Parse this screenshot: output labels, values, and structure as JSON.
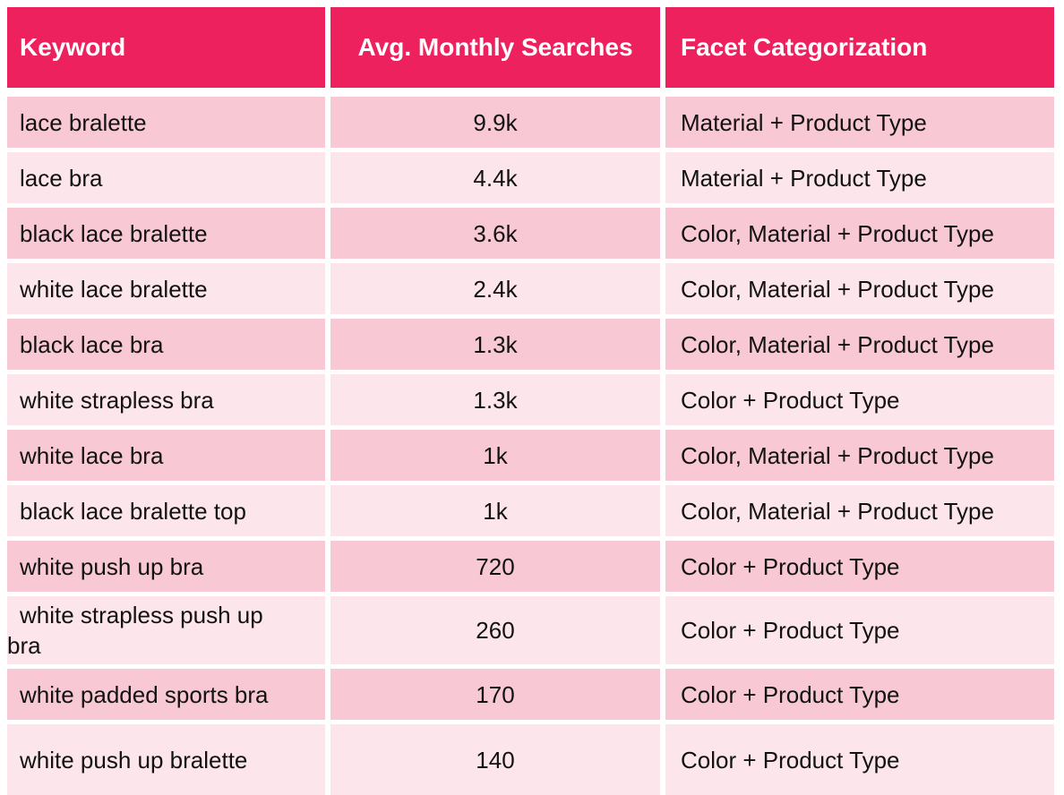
{
  "colors": {
    "header_bg": "#ED215E",
    "header_text": "#FFFFFF",
    "row_alt_dark": "#F8C9D4",
    "row_alt_light": "#FCE6EB",
    "body_text": "#121212",
    "divider": "#FFFFFF"
  },
  "chart_data": {
    "type": "table",
    "headers": [
      "Keyword",
      "Avg. Monthly Searches",
      "Facet Categorization"
    ],
    "rows": [
      {
        "keyword": "lace bralette",
        "avg_monthly_searches": "9.9k",
        "facet_categorization": "Material + Product Type"
      },
      {
        "keyword": "lace bra",
        "avg_monthly_searches": "4.4k",
        "facet_categorization": "Material + Product Type"
      },
      {
        "keyword": "black lace bralette",
        "avg_monthly_searches": "3.6k",
        "facet_categorization": "Color, Material + Product Type"
      },
      {
        "keyword": "white lace bralette",
        "avg_monthly_searches": "2.4k",
        "facet_categorization": "Color, Material + Product Type"
      },
      {
        "keyword": "black lace bra",
        "avg_monthly_searches": "1.3k",
        "facet_categorization": "Color, Material + Product Type"
      },
      {
        "keyword": "white strapless bra",
        "avg_monthly_searches": "1.3k",
        "facet_categorization": "Color + Product Type"
      },
      {
        "keyword": "white lace bra",
        "avg_monthly_searches": "1k",
        "facet_categorization": "Color, Material + Product Type"
      },
      {
        "keyword": "black lace bralette top",
        "avg_monthly_searches": "1k",
        "facet_categorization": "Color, Material + Product Type"
      },
      {
        "keyword": "white push up bra",
        "avg_monthly_searches": "720",
        "facet_categorization": "Color + Product Type"
      },
      {
        "keyword": "white strapless push up bra",
        "avg_monthly_searches": "260",
        "facet_categorization": "Color + Product Type"
      },
      {
        "keyword": "white padded sports bra",
        "avg_monthly_searches": "170",
        "facet_categorization": "Color + Product Type"
      },
      {
        "keyword": "white push up bralette",
        "avg_monthly_searches": "140",
        "facet_categorization": "Color + Product Type"
      }
    ]
  }
}
